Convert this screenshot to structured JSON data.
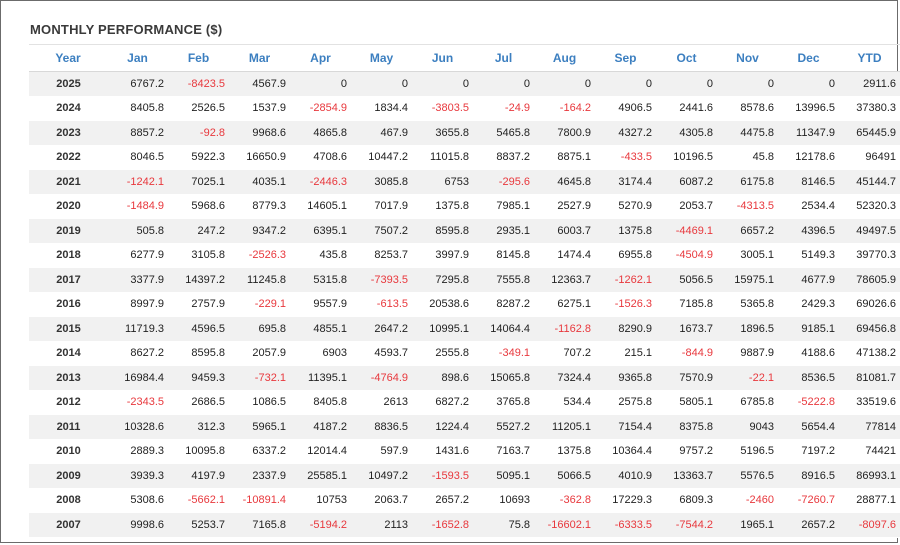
{
  "title": "MONTHLY PERFORMANCE ($)",
  "colors": {
    "header_text": "#3c7fc0",
    "negative": "#e8383d",
    "row_stripe": "#f1f1f1"
  },
  "columns": [
    "Year",
    "Jan",
    "Feb",
    "Mar",
    "Apr",
    "May",
    "Jun",
    "Jul",
    "Aug",
    "Sep",
    "Oct",
    "Nov",
    "Dec",
    "YTD"
  ],
  "rows": [
    [
      "2025",
      "6767.2",
      "-8423.5",
      "4567.9",
      "0",
      "0",
      "0",
      "0",
      "0",
      "0",
      "0",
      "0",
      "0",
      "2911.6"
    ],
    [
      "2024",
      "8405.8",
      "2526.5",
      "1537.9",
      "-2854.9",
      "1834.4",
      "-3803.5",
      "-24.9",
      "-164.2",
      "4906.5",
      "2441.6",
      "8578.6",
      "13996.5",
      "37380.3"
    ],
    [
      "2023",
      "8857.2",
      "-92.8",
      "9968.6",
      "4865.8",
      "467.9",
      "3655.8",
      "5465.8",
      "7800.9",
      "4327.2",
      "4305.8",
      "4475.8",
      "11347.9",
      "65445.9"
    ],
    [
      "2022",
      "8046.5",
      "5922.3",
      "16650.9",
      "4708.6",
      "10447.2",
      "11015.8",
      "8837.2",
      "8875.1",
      "-433.5",
      "10196.5",
      "45.8",
      "12178.6",
      "96491"
    ],
    [
      "2021",
      "-1242.1",
      "7025.1",
      "4035.1",
      "-2446.3",
      "3085.8",
      "6753",
      "-295.6",
      "4645.8",
      "3174.4",
      "6087.2",
      "6175.8",
      "8146.5",
      "45144.7"
    ],
    [
      "2020",
      "-1484.9",
      "5968.6",
      "8779.3",
      "14605.1",
      "7017.9",
      "1375.8",
      "7985.1",
      "2527.9",
      "5270.9",
      "2053.7",
      "-4313.5",
      "2534.4",
      "52320.3"
    ],
    [
      "2019",
      "505.8",
      "247.2",
      "9347.2",
      "6395.1",
      "7507.2",
      "8595.8",
      "2935.1",
      "6003.7",
      "1375.8",
      "-4469.1",
      "6657.2",
      "4396.5",
      "49497.5"
    ],
    [
      "2018",
      "6277.9",
      "3105.8",
      "-2526.3",
      "435.8",
      "8253.7",
      "3997.9",
      "8145.8",
      "1474.4",
      "6955.8",
      "-4504.9",
      "3005.1",
      "5149.3",
      "39770.3"
    ],
    [
      "2017",
      "3377.9",
      "14397.2",
      "11245.8",
      "5315.8",
      "-7393.5",
      "7295.8",
      "7555.8",
      "12363.7",
      "-1262.1",
      "5056.5",
      "15975.1",
      "4677.9",
      "78605.9"
    ],
    [
      "2016",
      "8997.9",
      "2757.9",
      "-229.1",
      "9557.9",
      "-613.5",
      "20538.6",
      "8287.2",
      "6275.1",
      "-1526.3",
      "7185.8",
      "5365.8",
      "2429.3",
      "69026.6"
    ],
    [
      "2015",
      "11719.3",
      "4596.5",
      "695.8",
      "4855.1",
      "2647.2",
      "10995.1",
      "14064.4",
      "-1162.8",
      "8290.9",
      "1673.7",
      "1896.5",
      "9185.1",
      "69456.8"
    ],
    [
      "2014",
      "8627.2",
      "8595.8",
      "2057.9",
      "6903",
      "4593.7",
      "2555.8",
      "-349.1",
      "707.2",
      "215.1",
      "-844.9",
      "9887.9",
      "4188.6",
      "47138.2"
    ],
    [
      "2013",
      "16984.4",
      "9459.3",
      "-732.1",
      "11395.1",
      "-4764.9",
      "898.6",
      "15065.8",
      "7324.4",
      "9365.8",
      "7570.9",
      "-22.1",
      "8536.5",
      "81081.7"
    ],
    [
      "2012",
      "-2343.5",
      "2686.5",
      "1086.5",
      "8405.8",
      "2613",
      "6827.2",
      "3765.8",
      "534.4",
      "2575.8",
      "5805.1",
      "6785.8",
      "-5222.8",
      "33519.6"
    ],
    [
      "2011",
      "10328.6",
      "312.3",
      "5965.1",
      "4187.2",
      "8836.5",
      "1224.4",
      "5527.2",
      "11205.1",
      "7154.4",
      "8375.8",
      "9043",
      "5654.4",
      "77814"
    ],
    [
      "2010",
      "2889.3",
      "10095.8",
      "6337.2",
      "12014.4",
      "597.9",
      "1431.6",
      "7163.7",
      "1375.8",
      "10364.4",
      "9757.2",
      "5196.5",
      "7197.2",
      "74421"
    ],
    [
      "2009",
      "3939.3",
      "4197.9",
      "2337.9",
      "25585.1",
      "10497.2",
      "-1593.5",
      "5095.1",
      "5066.5",
      "4010.9",
      "13363.7",
      "5576.5",
      "8916.5",
      "86993.1"
    ],
    [
      "2008",
      "5308.6",
      "-5662.1",
      "-10891.4",
      "10753",
      "2063.7",
      "2657.2",
      "10693",
      "-362.8",
      "17229.3",
      "6809.3",
      "-2460",
      "-7260.7",
      "28877.1"
    ],
    [
      "2007",
      "9998.6",
      "5253.7",
      "7165.8",
      "-5194.2",
      "2113",
      "-1652.8",
      "75.8",
      "-16602.1",
      "-6333.5",
      "-7544.2",
      "1965.1",
      "2657.2",
      "-8097.6"
    ]
  ]
}
